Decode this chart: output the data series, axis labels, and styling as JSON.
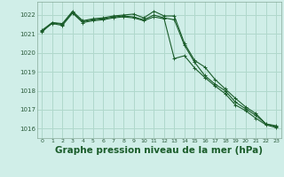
{
  "background_color": "#d0eee8",
  "grid_color": "#b0d8cc",
  "line_color": "#1a5c2a",
  "title": "Graphe pression niveau de la mer (hPa)",
  "title_fontsize": 7.5,
  "ylim": [
    1015.5,
    1022.7
  ],
  "xlim": [
    -0.5,
    23.5
  ],
  "yticks": [
    1016,
    1017,
    1018,
    1019,
    1020,
    1021,
    1022
  ],
  "xticks": [
    0,
    1,
    2,
    3,
    4,
    5,
    6,
    7,
    8,
    9,
    10,
    11,
    12,
    13,
    14,
    15,
    16,
    17,
    18,
    19,
    20,
    21,
    22,
    23
  ],
  "series": [
    [
      1021.2,
      1021.6,
      1021.55,
      1022.2,
      1021.7,
      1021.8,
      1021.85,
      1021.95,
      1022.0,
      1022.05,
      1021.85,
      1022.2,
      1021.95,
      1021.95,
      1020.5,
      1019.6,
      1019.25,
      1018.6,
      1018.1,
      1017.6,
      1017.15,
      1016.8,
      1016.25,
      1016.15
    ],
    [
      1021.1,
      1021.6,
      1021.5,
      1022.15,
      1021.65,
      1021.75,
      1021.8,
      1021.9,
      1021.95,
      1021.9,
      1021.75,
      1022.0,
      1021.85,
      1021.75,
      1020.4,
      1019.5,
      1018.8,
      1018.35,
      1018.0,
      1017.4,
      1017.05,
      1016.7,
      1016.25,
      1016.1
    ],
    [
      1021.15,
      1021.55,
      1021.45,
      1022.1,
      1021.6,
      1021.7,
      1021.75,
      1021.85,
      1021.9,
      1021.85,
      1021.7,
      1021.9,
      1021.8,
      1019.7,
      1019.85,
      1019.2,
      1018.7,
      1018.25,
      1017.85,
      1017.25,
      1016.95,
      1016.55,
      1016.2,
      1016.05
    ]
  ]
}
